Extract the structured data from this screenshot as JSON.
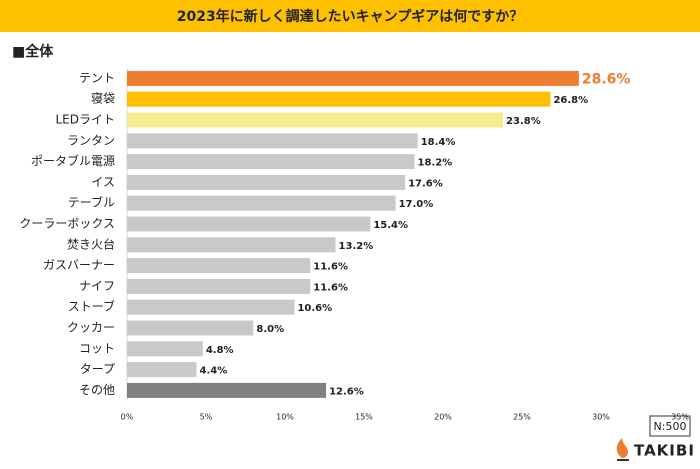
{
  "chart_data": {
    "type": "bar",
    "orientation": "horizontal",
    "title": "2023年に新しく調達したいキャンプギアは何ですか？",
    "subtitle": "■全体",
    "categories": [
      "テント",
      "寝袋",
      "LEDライト",
      "ランタン",
      "ポータブル電源",
      "イス",
      "テーブル",
      "クーラーボックス",
      "焚き火台",
      "ガスバーナー",
      "ナイフ",
      "ストーブ",
      "クッカー",
      "コット",
      "タープ",
      "その他"
    ],
    "values": [
      28.6,
      26.8,
      23.8,
      18.4,
      18.2,
      17.6,
      17.0,
      15.4,
      13.2,
      11.6,
      11.6,
      10.6,
      8.0,
      4.8,
      4.4,
      12.6
    ],
    "value_labels": [
      "28.6%",
      "26.8%",
      "23.8%",
      "18.4%",
      "18.2%",
      "17.6%",
      "17.0%",
      "15.4%",
      "13.2%",
      "11.6%",
      "11.6%",
      "10.6%",
      "8.0%",
      "4.8%",
      "4.4%",
      "12.6%"
    ],
    "colors": [
      "#ed7d31",
      "#ffc000",
      "#f6ea8f",
      "#c9c9c9",
      "#c9c9c9",
      "#c9c9c9",
      "#c9c9c9",
      "#c9c9c9",
      "#c9c9c9",
      "#c9c9c9",
      "#c9c9c9",
      "#c9c9c9",
      "#c9c9c9",
      "#c9c9c9",
      "#c9c9c9",
      "#808080"
    ],
    "xlim": [
      0,
      35
    ],
    "xticks": [
      {
        "value": 0,
        "label": "0%"
      },
      {
        "value": 5,
        "label": "5%"
      },
      {
        "value": 10,
        "label": "10%"
      },
      {
        "value": 15,
        "label": "15%"
      },
      {
        "value": 20,
        "label": "20%"
      },
      {
        "value": 25,
        "label": "25%"
      },
      {
        "value": 30,
        "label": "30%"
      },
      {
        "value": 35,
        "label": "35%"
      }
    ],
    "note": "N:500",
    "logo": "TAKIBI"
  }
}
